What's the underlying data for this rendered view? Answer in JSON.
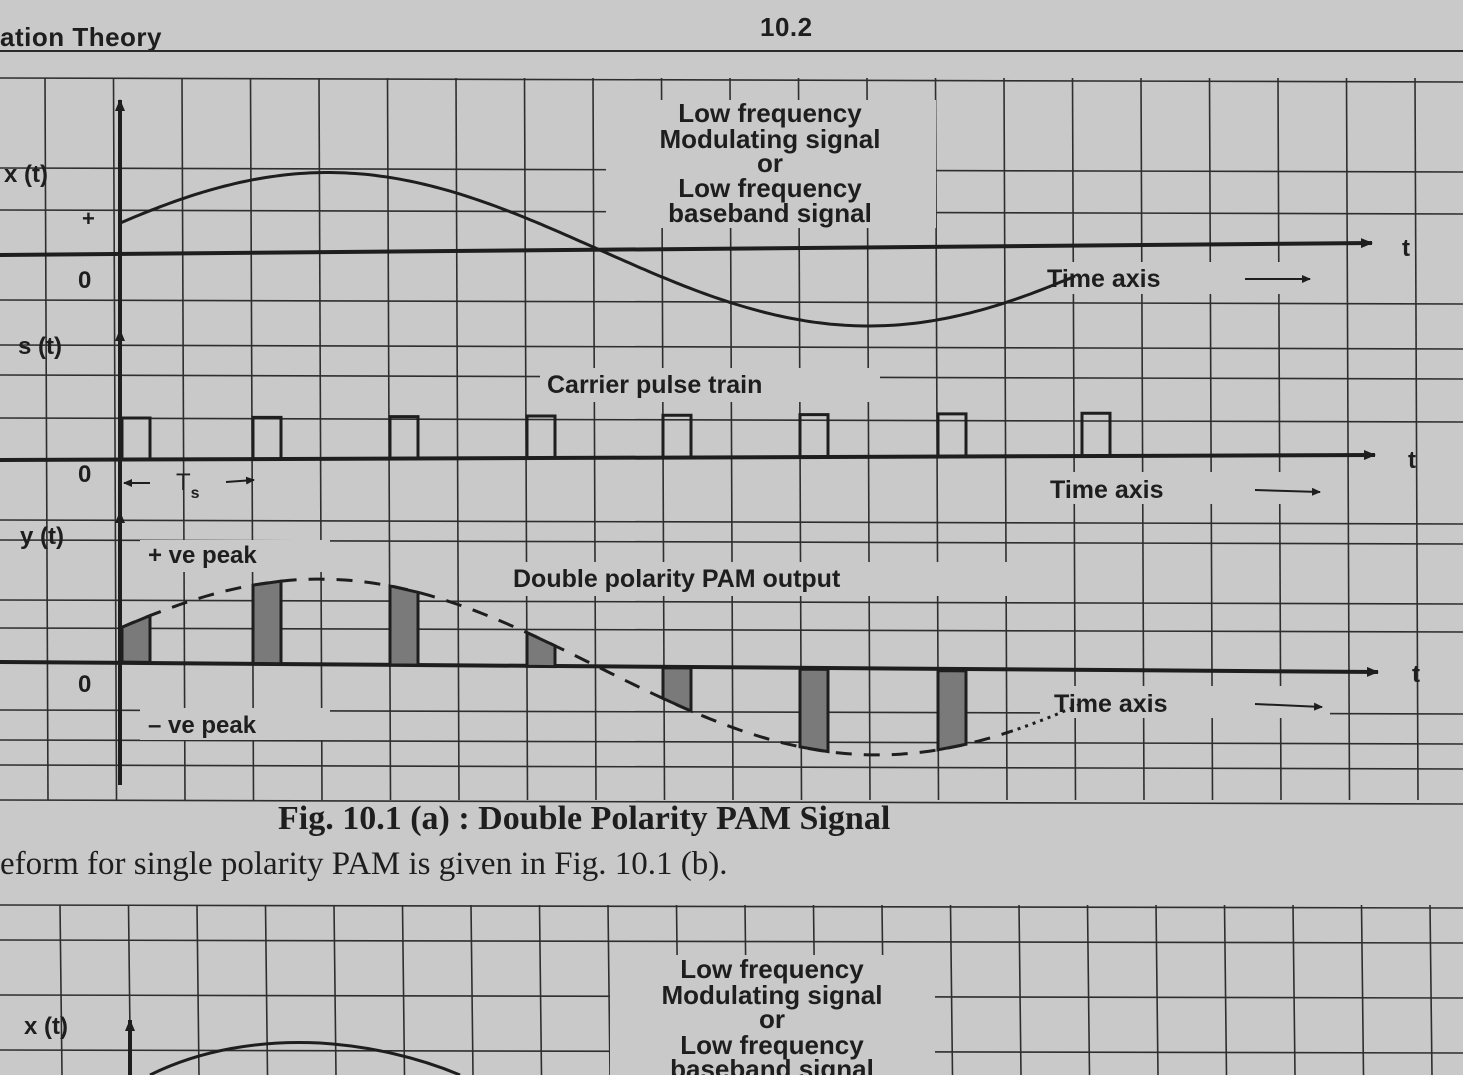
{
  "header": {
    "left": "ation Theory",
    "right": "10.2"
  },
  "figure_a": {
    "panel_x": {
      "axis_label": "x (t)",
      "plus_mark": "+",
      "zero_label": "0",
      "annotation": [
        "Low frequency",
        "Modulating signal",
        "or",
        "Low frequency",
        "baseband signal"
      ],
      "time_axis_label": "Time axis",
      "t_label": "t"
    },
    "panel_s": {
      "axis_label": "s (t)",
      "zero_label": "0",
      "annotation": "Carrier pulse train",
      "period_label": "T",
      "period_sub": "s",
      "time_axis_label": "Time axis",
      "t_label": "t"
    },
    "panel_y": {
      "axis_label": "y (t)",
      "zero_label": "0",
      "pos_peak": "+ ve peak",
      "neg_peak": "– ve peak",
      "annotation": "Double polarity PAM output",
      "time_axis_label": "Time axis",
      "t_label": "t"
    },
    "caption": "Fig. 10.1 (a) : Double Polarity PAM Signal"
  },
  "body_text": "eform for single polarity PAM is given in Fig. 10.1 (b).",
  "figure_b_partial": {
    "axis_label": "x (t)",
    "annotation": [
      "Low frequency",
      "Modulating signal",
      "or",
      "Low frequency",
      "baseband signal"
    ]
  },
  "colors": {
    "paper": "#c9c9c9",
    "ink": "#1e1e1e",
    "grid": "#2e2e2e",
    "pulse_fill": "#7a7a7a"
  }
}
